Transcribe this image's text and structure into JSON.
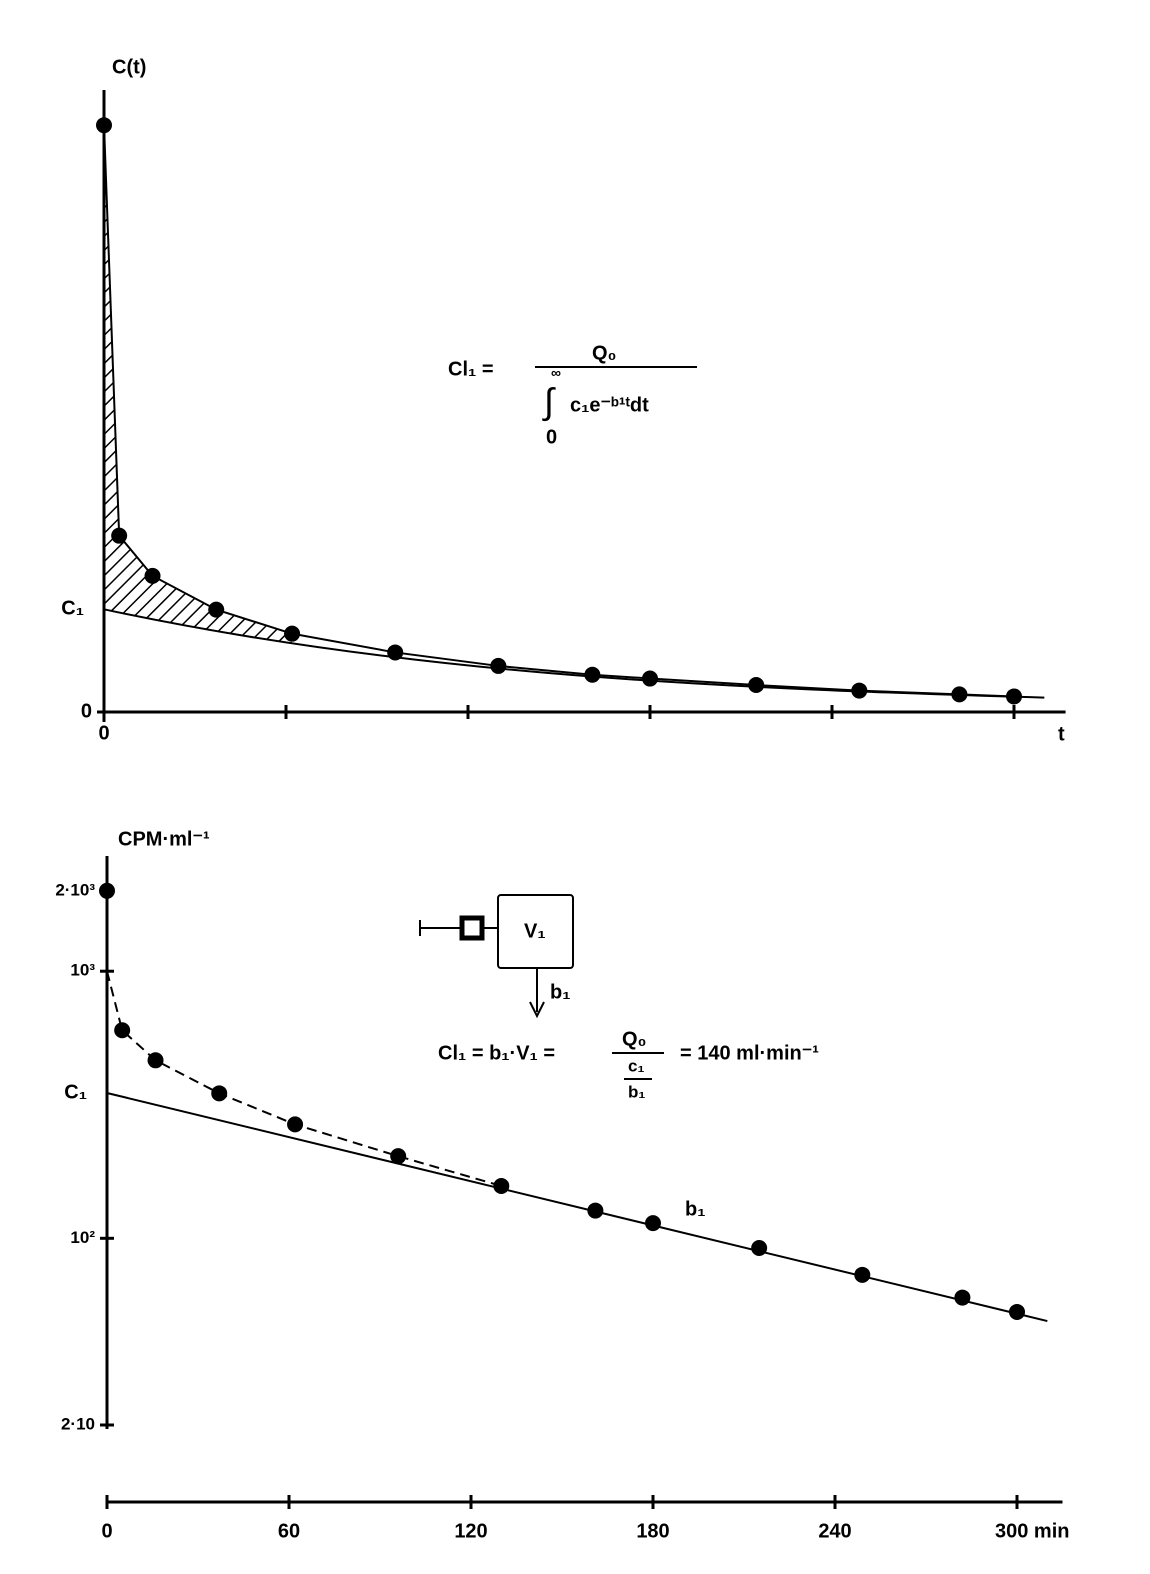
{
  "chart_data": [
    {
      "type": "line",
      "y_label": "C(t)",
      "x_label": "t",
      "x_origin_label": "0",
      "x": [
        0,
        5,
        16,
        37,
        62,
        96,
        130,
        161,
        180,
        215,
        249,
        282,
        300
      ],
      "series": [
        {
          "color": "#000000",
          "values": [
            2000,
            601,
            464,
            349,
            267,
            203,
            157,
            127,
            114,
            92,
            73,
            60,
            53
          ]
        }
      ],
      "fit_line": {
        "x": [
          0,
          310
        ],
        "values": [
          350,
          49
        ]
      },
      "hatch_until": 62,
      "y_marks": [
        {
          "value": 350,
          "label": "C₁"
        }
      ],
      "xlim": [
        0,
        317
      ],
      "ylim": [
        0,
        2120
      ],
      "xticks": [
        0,
        60,
        120,
        180,
        240,
        300
      ],
      "xtick_labels": false,
      "yticks": [
        0
      ],
      "connect": true,
      "log_y": false,
      "formula": {
        "lhs": "Cl₁ =",
        "numerator": "Q₀",
        "upper": "∞",
        "integral": "∫",
        "integrand": "c₁e⁻ᵇ¹ᵗdt",
        "lower": "0"
      }
    },
    {
      "type": "line",
      "y_label": "CPM·ml⁻¹",
      "x": [
        0,
        5,
        16,
        37,
        62,
        96,
        130,
        161,
        180,
        215,
        249,
        282,
        300
      ],
      "series": [
        {
          "color": "#000000",
          "values": [
            2000,
            601,
            464,
            349,
            267,
            203,
            157,
            127,
            114,
            92,
            73,
            60,
            53
          ]
        }
      ],
      "fit_line": {
        "x": [
          0,
          310
        ],
        "values": [
          350,
          49
        ],
        "label": "b₁"
      },
      "dashed_curve": {
        "x": [
          0,
          5,
          16,
          37,
          62,
          96,
          130
        ],
        "values": [
          1000,
          601,
          464,
          349,
          267,
          203,
          157
        ]
      },
      "y_marks": [
        {
          "value": 350,
          "label": "C₁"
        }
      ],
      "xlim": [
        0,
        315
      ],
      "ylim": [
        20,
        2700
      ],
      "xticks": [
        0,
        60,
        120,
        180,
        240,
        {
          "value": 300,
          "label": "300 min"
        }
      ],
      "yticks": [
        {
          "value": 2000,
          "label": "2·10³"
        },
        {
          "value": 1000,
          "label": "10³"
        },
        {
          "value": 100,
          "label": "10²"
        },
        {
          "value": 20,
          "label": "2·10"
        }
      ],
      "connect": false,
      "log_y": true,
      "diagram": {
        "compartment": "V₁",
        "rate": "b₁"
      },
      "formula": {
        "lhs": "Cl₁ = b₁·V₁ =",
        "numerator": "Q₀",
        "den_top": "c₁",
        "den_bottom": "b₁",
        "result": "= 140 ml·min⁻¹"
      }
    }
  ]
}
